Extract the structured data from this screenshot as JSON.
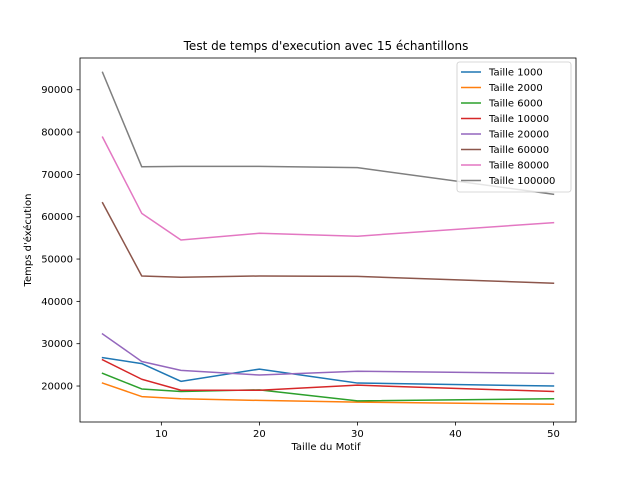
{
  "chart_data": {
    "type": "line",
    "title": "Test de temps d'execution avec 15 échantillons",
    "xlabel": "Taille du Motif",
    "ylabel": "Temps d'éxécution",
    "x": [
      4,
      8,
      12,
      20,
      30,
      50
    ],
    "xlim": [
      1.7,
      52.3
    ],
    "ylim": [
      11500,
      97500
    ],
    "xticks": [
      10,
      20,
      30,
      40,
      50
    ],
    "yticks": [
      20000,
      30000,
      40000,
      50000,
      60000,
      70000,
      80000,
      90000
    ],
    "grid": false,
    "legend_position": "top-right",
    "series": [
      {
        "name": "Taille 1000",
        "color": "#1f77b4",
        "values": [
          26700,
          25300,
          21100,
          24000,
          20700,
          20000
        ]
      },
      {
        "name": "Taille 2000",
        "color": "#ff7f0e",
        "values": [
          20700,
          17500,
          17000,
          16600,
          16200,
          15700
        ]
      },
      {
        "name": "Taille 6000",
        "color": "#2ca02c",
        "values": [
          23000,
          19300,
          18700,
          19100,
          16500,
          17000
        ]
      },
      {
        "name": "Taille 10000",
        "color": "#d62728",
        "values": [
          26200,
          21600,
          19000,
          19000,
          20200,
          18700
        ]
      },
      {
        "name": "Taille 20000",
        "color": "#9467bd",
        "values": [
          32300,
          25800,
          23700,
          22600,
          23500,
          23000
        ]
      },
      {
        "name": "Taille 60000",
        "color": "#8c564b",
        "values": [
          63300,
          46000,
          45700,
          46000,
          45900,
          44300
        ]
      },
      {
        "name": "Taille 80000",
        "color": "#e377c2",
        "values": [
          78800,
          60800,
          54500,
          56100,
          55400,
          58600
        ]
      },
      {
        "name": "Taille 100000",
        "color": "#7f7f7f",
        "values": [
          94100,
          71800,
          71900,
          71900,
          71600,
          65300
        ]
      }
    ]
  }
}
